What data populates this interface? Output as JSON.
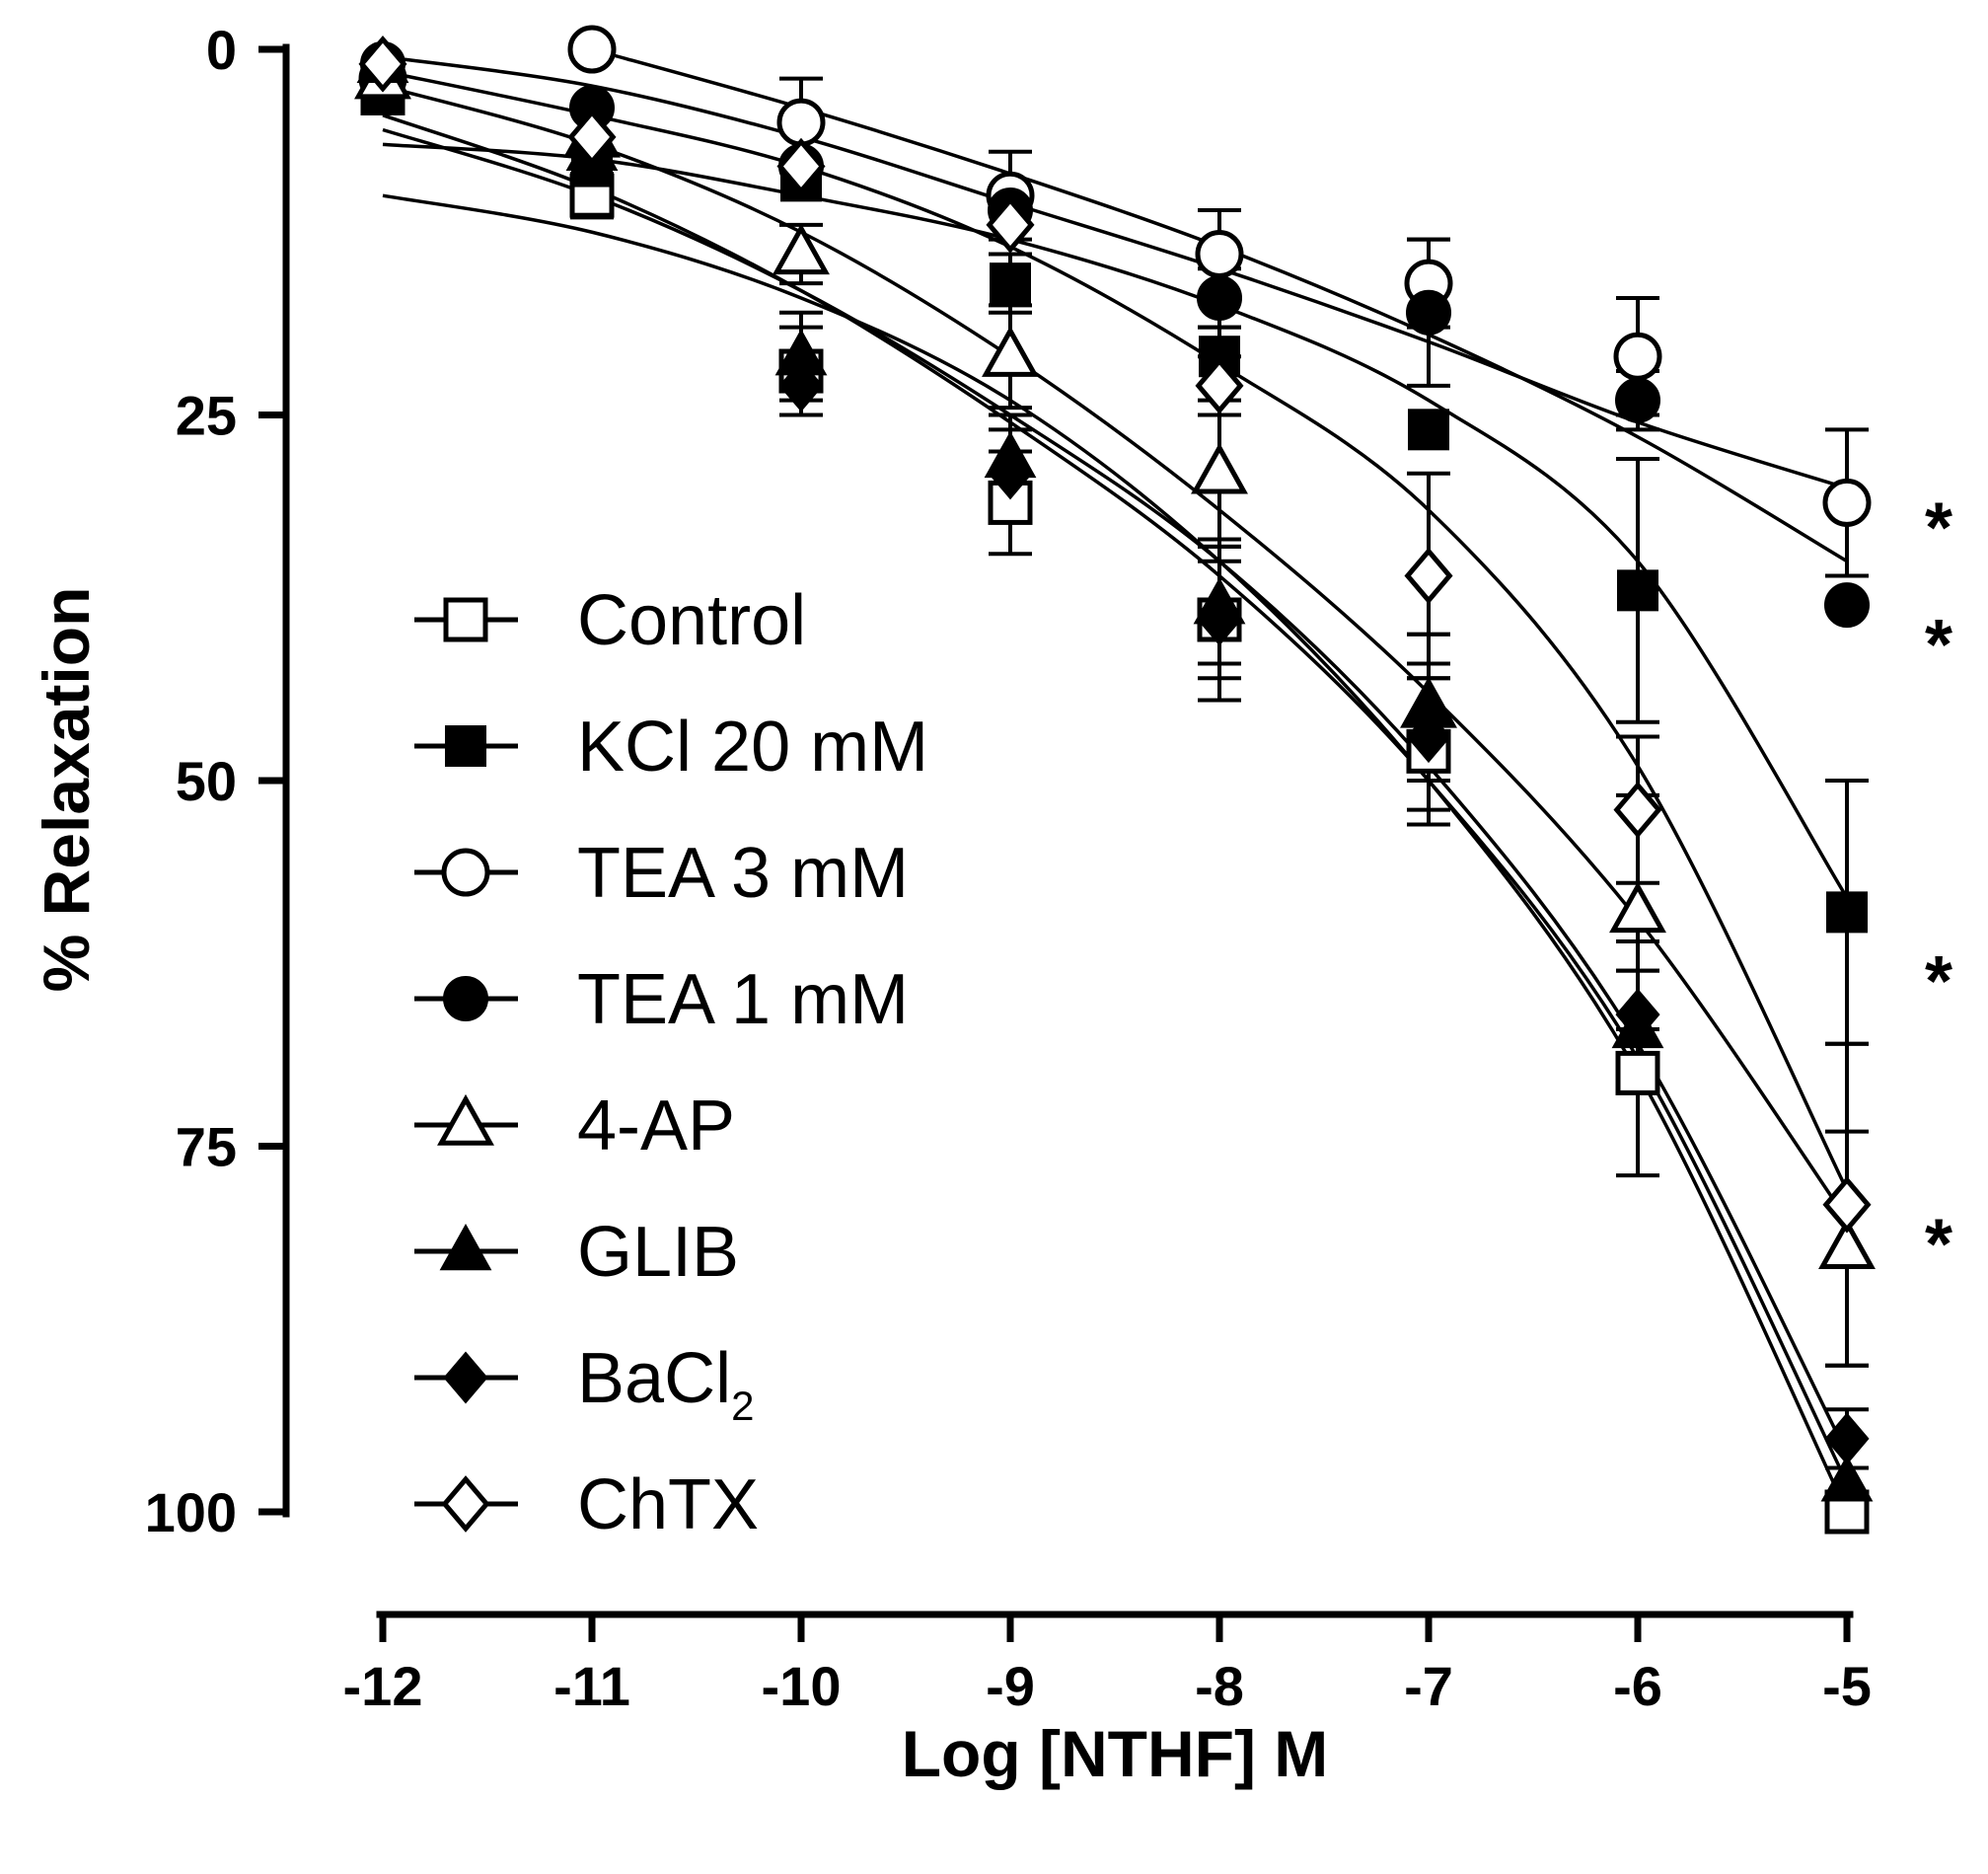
{
  "chart_data": {
    "type": "line",
    "title": "",
    "xlabel": "Log [NTHF] M",
    "ylabel": "% Relaxation",
    "xlim": [
      -12,
      -5
    ],
    "ylim": [
      0,
      100
    ],
    "y_inverted": true,
    "x_ticks": [
      -12,
      -11,
      -10,
      -9,
      -8,
      -7,
      -6,
      -5
    ],
    "x_tick_labels": [
      "-12",
      "-11",
      "-10",
      "-9",
      "-8",
      "-7",
      "-6",
      "-5"
    ],
    "y_ticks": [
      0,
      25,
      50,
      75,
      100
    ],
    "y_tick_labels": [
      "0",
      "25",
      "50",
      "75",
      "100"
    ],
    "legend_position": "center-left",
    "x": [
      -12,
      -11,
      -10,
      -9,
      -8,
      -7,
      -6,
      -5
    ],
    "series": [
      {
        "name": "Control",
        "marker": "open-square",
        "values": [
          3,
          10,
          22,
          31,
          39,
          48,
          70,
          100
        ],
        "errors": [
          1,
          1.5,
          3,
          3.5,
          5.5,
          5,
          7,
          0
        ],
        "fit": [
          10,
          12.5,
          17,
          24,
          35,
          50,
          70,
          100
        ]
      },
      {
        "name": "KCl 20 mM",
        "marker": "filled-square",
        "values": [
          3,
          8,
          9,
          16,
          21,
          26,
          37,
          59
        ],
        "errors": [
          1,
          1,
          1,
          2,
          2,
          1,
          9,
          9
        ],
        "fit": [
          6.5,
          7.5,
          10,
          13,
          17.5,
          24,
          35,
          58
        ]
      },
      {
        "name": "TEA 3 mM",
        "marker": "open-circle",
        "values": [
          2,
          0,
          5,
          10,
          14,
          16,
          21,
          31
        ],
        "errors": [
          0.5,
          0.5,
          3,
          3,
          3,
          3,
          4,
          5
        ],
        "fit": [
          null,
          0,
          4,
          8.5,
          13.5,
          19.5,
          26.5,
          35
        ]
      },
      {
        "name": "TEA 1 mM",
        "marker": "filled-circle",
        "values": [
          1,
          4,
          8,
          11,
          17,
          18,
          24,
          38
        ],
        "errors": [
          0.5,
          0.5,
          1,
          1,
          2,
          5,
          2,
          1
        ],
        "fit": [
          0.5,
          2.5,
          6,
          10.5,
          15,
          20,
          25.5,
          30
        ]
      },
      {
        "name": "4-AP",
        "marker": "open-triangle",
        "values": [
          2,
          6,
          14,
          21,
          29,
          45,
          59,
          82
        ],
        "errors": [
          0.5,
          1,
          2,
          3.5,
          5,
          5,
          8,
          8
        ],
        "fit": [
          2.5,
          6.5,
          12.5,
          21,
          31.5,
          44,
          59.5,
          80
        ]
      },
      {
        "name": "GLIB",
        "marker": "filled-triangle",
        "values": [
          1,
          7,
          21,
          28,
          38,
          45,
          67,
          98
        ],
        "errors": [
          0.5,
          1,
          3,
          3,
          4,
          5,
          4,
          0
        ],
        "fit": [
          5.5,
          10,
          16.5,
          25,
          35,
          49,
          68,
          96
        ]
      },
      {
        "name": "BaCl₂",
        "marker": "filled-diamond",
        "values": [
          1,
          7,
          23,
          29,
          39,
          47,
          66,
          95
        ],
        "errors": [
          0.5,
          1,
          2,
          3,
          4,
          5,
          5,
          2
        ],
        "fit": [
          4.5,
          9.5,
          16.5,
          25.5,
          36,
          50,
          69,
          98
        ]
      },
      {
        "name": "ChTX",
        "marker": "open-diamond",
        "values": [
          1,
          6,
          8,
          12,
          23,
          36,
          52,
          79
        ],
        "errors": [
          0.5,
          1,
          1,
          1,
          2,
          7,
          5,
          11
        ],
        "fit": [
          1.5,
          4.5,
          8,
          13.5,
          21.5,
          31.5,
          49,
          78
        ]
      }
    ],
    "annotations": [
      {
        "text": "*",
        "y_value": 31
      },
      {
        "text": "*",
        "y_value": 39
      },
      {
        "text": "*",
        "y_value": 62
      },
      {
        "text": "*",
        "y_value": 80
      }
    ]
  }
}
